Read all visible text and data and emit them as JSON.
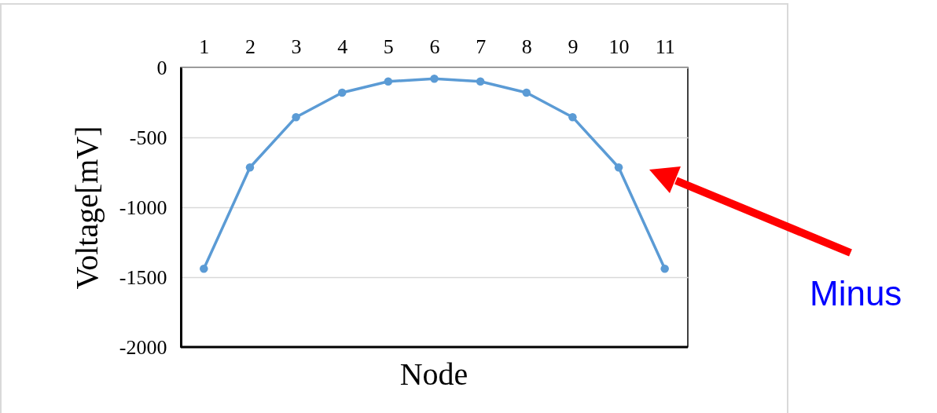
{
  "chart_data": {
    "type": "line",
    "xlabel": "Node",
    "ylabel": "Voltage[mV]",
    "categories": [
      "1",
      "2",
      "3",
      "4",
      "5",
      "6",
      "7",
      "8",
      "9",
      "10",
      "11"
    ],
    "series": [
      {
        "color": "#5b9bd5",
        "values": [
          -1440,
          -715,
          -355,
          -180,
          -100,
          -80,
          -100,
          -180,
          -355,
          -715,
          -1440
        ]
      }
    ],
    "ylim": [
      -2000,
      0
    ],
    "yticks": [
      -2000,
      -1500,
      -1000,
      -500,
      0
    ],
    "grid": "y",
    "marker": "circle",
    "line_style": "solid",
    "annotations": [
      "Minus"
    ]
  }
}
